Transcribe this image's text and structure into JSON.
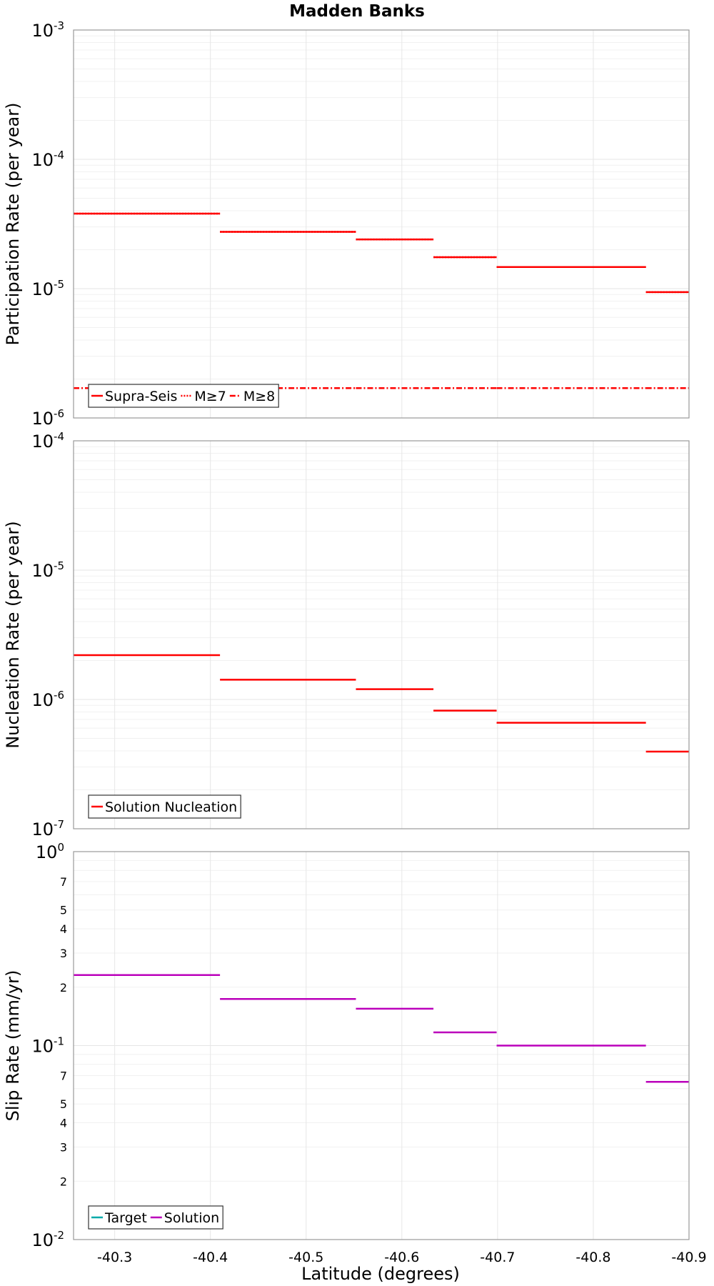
{
  "chart_data": {
    "title": "Madden Banks",
    "xlabel": "Latitude (degrees)",
    "x_ticks": [
      "-40.3",
      "-40.4",
      "-40.5",
      "-40.6",
      "-40.7",
      "-40.8",
      "-40.9"
    ],
    "x_tick_values": [
      -40.3,
      -40.4,
      -40.5,
      -40.6,
      -40.7,
      -40.8,
      -40.9
    ],
    "xlim": [
      -40.257,
      -40.9
    ],
    "segments": [
      {
        "x_start": -40.257,
        "x_end": -40.41
      },
      {
        "x_start": -40.41,
        "x_end": -40.552
      },
      {
        "x_start": -40.552,
        "x_end": -40.633
      },
      {
        "x_start": -40.633,
        "x_end": -40.699
      },
      {
        "x_start": -40.699,
        "x_end": -40.855
      },
      {
        "x_start": -40.855,
        "x_end": -40.9
      }
    ],
    "panels": [
      {
        "type": "line",
        "ylabel": "Participation Rate (per year)",
        "yscale": "log",
        "ylim": [
          1e-06,
          0.001
        ],
        "y_ticks": [
          {
            "base": "10",
            "exp": "-3",
            "value": 0.001
          },
          {
            "base": "10",
            "exp": "-4",
            "value": 0.0001
          },
          {
            "base": "10",
            "exp": "-5",
            "value": 1e-05
          },
          {
            "base": "10",
            "exp": "-6",
            "value": 1e-06
          }
        ],
        "minor_tick_labels": [],
        "series": [
          {
            "name": "Supra-Seis",
            "color": "#ff0000",
            "style": "solid",
            "values": [
              3.8e-05,
              2.75e-05,
              2.4e-05,
              1.75e-05,
              1.47e-05,
              9.4e-06
            ]
          },
          {
            "name": "M≥7",
            "color": "#ff0000",
            "style": "dotted",
            "values": [
              3.8e-05,
              2.75e-05,
              2.4e-05,
              1.75e-05,
              1.47e-05,
              9.4e-06
            ]
          },
          {
            "name": "M≥8",
            "color": "#ff0000",
            "style": "dashdot",
            "values": [
              1.7e-06,
              1.7e-06,
              1.7e-06,
              1.7e-06,
              1.7e-06,
              1.7e-06
            ]
          }
        ],
        "legend_position": "bottom-left"
      },
      {
        "type": "line",
        "ylabel": "Nucleation Rate (per year)",
        "yscale": "log",
        "ylim": [
          1e-07,
          0.0001
        ],
        "y_ticks": [
          {
            "base": "10",
            "exp": "-4",
            "value": 0.0001
          },
          {
            "base": "10",
            "exp": "-5",
            "value": 1e-05
          },
          {
            "base": "10",
            "exp": "-6",
            "value": 1e-06
          },
          {
            "base": "10",
            "exp": "-7",
            "value": 1e-07
          }
        ],
        "minor_tick_labels": [],
        "series": [
          {
            "name": "Solution Nucleation",
            "color": "#ff0000",
            "style": "solid",
            "values": [
              2.2e-06,
              1.42e-06,
              1.2e-06,
              8.2e-07,
              6.6e-07,
              3.95e-07
            ]
          }
        ],
        "legend_position": "bottom-left"
      },
      {
        "type": "line",
        "ylabel": "Slip Rate (mm/yr)",
        "yscale": "log",
        "ylim": [
          0.01,
          1
        ],
        "y_ticks": [
          {
            "base": "10",
            "exp": "0",
            "value": 1
          },
          {
            "base": "10",
            "exp": "-1",
            "value": 0.1
          },
          {
            "base": "10",
            "exp": "-2",
            "value": 0.01
          }
        ],
        "minor_tick_labels": [
          {
            "label": "7",
            "value": 0.7
          },
          {
            "label": "5",
            "value": 0.5
          },
          {
            "label": "4",
            "value": 0.4
          },
          {
            "label": "3",
            "value": 0.3
          },
          {
            "label": "2",
            "value": 0.2
          },
          {
            "label": "7",
            "value": 0.07
          },
          {
            "label": "5",
            "value": 0.05
          },
          {
            "label": "4",
            "value": 0.04
          },
          {
            "label": "3",
            "value": 0.03
          },
          {
            "label": "2",
            "value": 0.02
          }
        ],
        "series": [
          {
            "name": "Target",
            "color": "#00aaaa",
            "style": "solid",
            "values": []
          },
          {
            "name": "Solution",
            "color": "#bb00bb",
            "style": "solid",
            "values": [
              0.231,
              0.174,
              0.155,
              0.117,
              0.1,
              0.065
            ]
          }
        ],
        "legend_position": "bottom-left"
      }
    ]
  }
}
